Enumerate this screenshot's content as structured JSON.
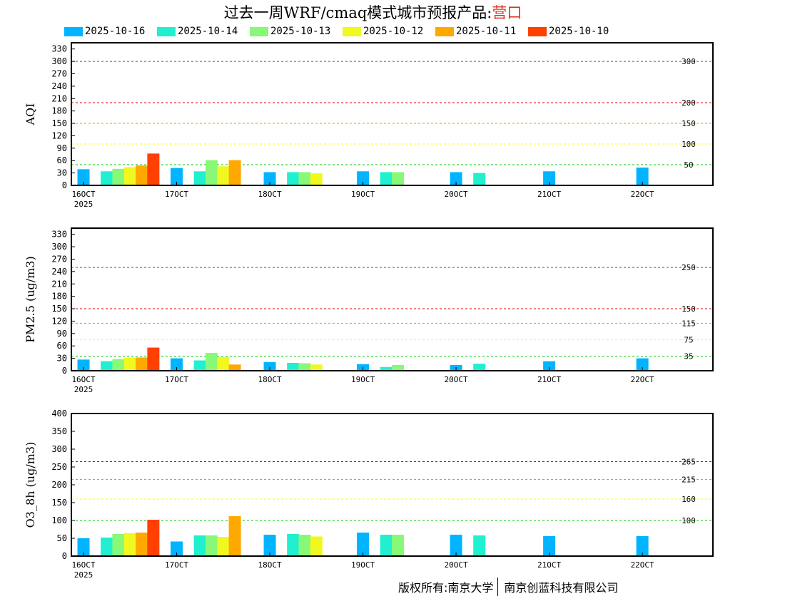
{
  "title": {
    "text": "过去一周WRF/cmaq模式城市预报产品:",
    "city": "营口"
  },
  "footer": {
    "left": "版权所有:南京大学",
    "right": "南京创蓝科技有限公司"
  },
  "colors": {
    "2025-10-16": "#00b4ff",
    "2025-10-14": "#20f0d0",
    "2025-10-13": "#88f878",
    "2025-10-12": "#f0f820",
    "2025-10-11": "#ffa800",
    "2025-10-10": "#ff4000"
  },
  "chart_data": [
    {
      "type": "bar",
      "ylabel": "AQI",
      "ylim": [
        0,
        345
      ],
      "yticks": [
        0,
        30,
        60,
        90,
        120,
        150,
        180,
        210,
        240,
        270,
        300,
        330
      ],
      "x_range": [
        0,
        6.75
      ],
      "xtick_positions": [
        0,
        1,
        2,
        3,
        4,
        5,
        6
      ],
      "xtick_labels": [
        "16OCT",
        "17OCT",
        "18OCT",
        "19OCT",
        "20OCT",
        "21OCT",
        "22OCT"
      ],
      "xtick_sublabel": "2025",
      "legend": [
        "2025-10-16",
        "2025-10-14",
        "2025-10-13",
        "2025-10-12",
        "2025-10-11",
        "2025-10-10"
      ],
      "thresholds": [
        {
          "value": 300,
          "label": "300",
          "color": "#b03060"
        },
        {
          "value": 200,
          "label": "200",
          "color": "#e00000"
        },
        {
          "value": 150,
          "label": "150",
          "color": "#ff8c00"
        },
        {
          "value": 100,
          "label": "100",
          "color": "#ffff00"
        },
        {
          "value": 50,
          "label": "50",
          "color": "#00c800"
        }
      ],
      "bars": [
        {
          "series": "2025-10-16",
          "x": 0.0,
          "value": 39
        },
        {
          "series": "2025-10-14",
          "x": 0.25,
          "value": 34
        },
        {
          "series": "2025-10-13",
          "x": 0.375,
          "value": 40
        },
        {
          "series": "2025-10-12",
          "x": 0.5,
          "value": 44
        },
        {
          "series": "2025-10-11",
          "x": 0.625,
          "value": 48
        },
        {
          "series": "2025-10-10",
          "x": 0.75,
          "value": 77
        },
        {
          "series": "2025-10-16",
          "x": 1.0,
          "value": 42
        },
        {
          "series": "2025-10-14",
          "x": 1.25,
          "value": 34
        },
        {
          "series": "2025-10-13",
          "x": 1.375,
          "value": 61
        },
        {
          "series": "2025-10-12",
          "x": 1.5,
          "value": 46
        },
        {
          "series": "2025-10-11",
          "x": 1.625,
          "value": 61
        },
        {
          "series": "2025-10-16",
          "x": 2.0,
          "value": 32
        },
        {
          "series": "2025-10-14",
          "x": 2.25,
          "value": 32
        },
        {
          "series": "2025-10-13",
          "x": 2.375,
          "value": 32
        },
        {
          "series": "2025-10-12",
          "x": 2.5,
          "value": 29
        },
        {
          "series": "2025-10-16",
          "x": 3.0,
          "value": 34
        },
        {
          "series": "2025-10-14",
          "x": 3.25,
          "value": 32
        },
        {
          "series": "2025-10-13",
          "x": 3.375,
          "value": 32
        },
        {
          "series": "2025-10-16",
          "x": 4.0,
          "value": 32
        },
        {
          "series": "2025-10-14",
          "x": 4.25,
          "value": 30
        },
        {
          "series": "2025-10-16",
          "x": 5.0,
          "value": 34
        },
        {
          "series": "2025-10-16",
          "x": 6.0,
          "value": 43
        }
      ]
    },
    {
      "type": "bar",
      "ylabel": "PM2.5 (ug/m3)",
      "ylim": [
        0,
        345
      ],
      "yticks": [
        0,
        30,
        60,
        90,
        120,
        150,
        180,
        210,
        240,
        270,
        300,
        330
      ],
      "x_range": [
        0,
        6.75
      ],
      "xtick_positions": [
        0,
        1,
        2,
        3,
        4,
        5,
        6
      ],
      "xtick_labels": [
        "16OCT",
        "17OCT",
        "18OCT",
        "19OCT",
        "20OCT",
        "21OCT",
        "22OCT"
      ],
      "xtick_sublabel": "2025",
      "thresholds": [
        {
          "value": 250,
          "label": "250",
          "color": "#b03060"
        },
        {
          "value": 150,
          "label": "150",
          "color": "#e00000"
        },
        {
          "value": 115,
          "label": "115",
          "color": "#ff8c00"
        },
        {
          "value": 75,
          "label": "75",
          "color": "#ffff00"
        },
        {
          "value": 35,
          "label": "35",
          "color": "#00c800"
        }
      ],
      "bars": [
        {
          "series": "2025-10-16",
          "x": 0.0,
          "value": 27
        },
        {
          "series": "2025-10-14",
          "x": 0.25,
          "value": 23
        },
        {
          "series": "2025-10-13",
          "x": 0.375,
          "value": 28
        },
        {
          "series": "2025-10-12",
          "x": 0.5,
          "value": 31
        },
        {
          "series": "2025-10-11",
          "x": 0.625,
          "value": 32
        },
        {
          "series": "2025-10-10",
          "x": 0.75,
          "value": 56
        },
        {
          "series": "2025-10-16",
          "x": 1.0,
          "value": 30
        },
        {
          "series": "2025-10-14",
          "x": 1.25,
          "value": 25
        },
        {
          "series": "2025-10-13",
          "x": 1.375,
          "value": 43
        },
        {
          "series": "2025-10-12",
          "x": 1.5,
          "value": 33
        },
        {
          "series": "2025-10-11",
          "x": 1.625,
          "value": 15
        },
        {
          "series": "2025-10-16",
          "x": 2.0,
          "value": 21
        },
        {
          "series": "2025-10-14",
          "x": 2.25,
          "value": 19
        },
        {
          "series": "2025-10-13",
          "x": 2.375,
          "value": 18
        },
        {
          "series": "2025-10-12",
          "x": 2.5,
          "value": 15
        },
        {
          "series": "2025-10-16",
          "x": 3.0,
          "value": 16
        },
        {
          "series": "2025-10-14",
          "x": 3.25,
          "value": 9
        },
        {
          "series": "2025-10-13",
          "x": 3.375,
          "value": 14
        },
        {
          "series": "2025-10-16",
          "x": 4.0,
          "value": 14
        },
        {
          "series": "2025-10-14",
          "x": 4.25,
          "value": 17
        },
        {
          "series": "2025-10-16",
          "x": 5.0,
          "value": 23
        },
        {
          "series": "2025-10-16",
          "x": 6.0,
          "value": 30
        }
      ]
    },
    {
      "type": "bar",
      "ylabel": "O3_8h (ug/m3)",
      "ylim": [
        0,
        400
      ],
      "yticks": [
        0,
        50,
        100,
        150,
        200,
        250,
        300,
        350,
        400
      ],
      "x_range": [
        0,
        6.75
      ],
      "xtick_positions": [
        0,
        1,
        2,
        3,
        4,
        5,
        6
      ],
      "xtick_labels": [
        "16OCT",
        "17OCT",
        "18OCT",
        "19OCT",
        "20OCT",
        "21OCT",
        "22OCT"
      ],
      "xtick_sublabel": "2025",
      "thresholds": [
        {
          "value": 265,
          "label": "265",
          "color": "#e00000"
        },
        {
          "value": 215,
          "label": "215",
          "color": "#ff8c00"
        },
        {
          "value": 160,
          "label": "160",
          "color": "#ffff00"
        },
        {
          "value": 100,
          "label": "100",
          "color": "#00c800"
        }
      ],
      "bars": [
        {
          "series": "2025-10-16",
          "x": 0.0,
          "value": 50
        },
        {
          "series": "2025-10-14",
          "x": 0.25,
          "value": 52
        },
        {
          "series": "2025-10-13",
          "x": 0.375,
          "value": 62
        },
        {
          "series": "2025-10-12",
          "x": 0.5,
          "value": 64
        },
        {
          "series": "2025-10-11",
          "x": 0.625,
          "value": 66
        },
        {
          "series": "2025-10-10",
          "x": 0.75,
          "value": 102
        },
        {
          "series": "2025-10-16",
          "x": 1.0,
          "value": 41
        },
        {
          "series": "2025-10-14",
          "x": 1.25,
          "value": 58
        },
        {
          "series": "2025-10-13",
          "x": 1.375,
          "value": 58
        },
        {
          "series": "2025-10-12",
          "x": 1.5,
          "value": 54
        },
        {
          "series": "2025-10-11",
          "x": 1.625,
          "value": 112
        },
        {
          "series": "2025-10-16",
          "x": 2.0,
          "value": 60
        },
        {
          "series": "2025-10-14",
          "x": 2.25,
          "value": 62
        },
        {
          "series": "2025-10-13",
          "x": 2.375,
          "value": 60
        },
        {
          "series": "2025-10-12",
          "x": 2.5,
          "value": 55
        },
        {
          "series": "2025-10-16",
          "x": 3.0,
          "value": 66
        },
        {
          "series": "2025-10-14",
          "x": 3.25,
          "value": 60
        },
        {
          "series": "2025-10-13",
          "x": 3.375,
          "value": 60
        },
        {
          "series": "2025-10-16",
          "x": 4.0,
          "value": 60
        },
        {
          "series": "2025-10-14",
          "x": 4.25,
          "value": 58
        },
        {
          "series": "2025-10-16",
          "x": 5.0,
          "value": 56
        },
        {
          "series": "2025-10-16",
          "x": 6.0,
          "value": 56
        }
      ]
    }
  ]
}
